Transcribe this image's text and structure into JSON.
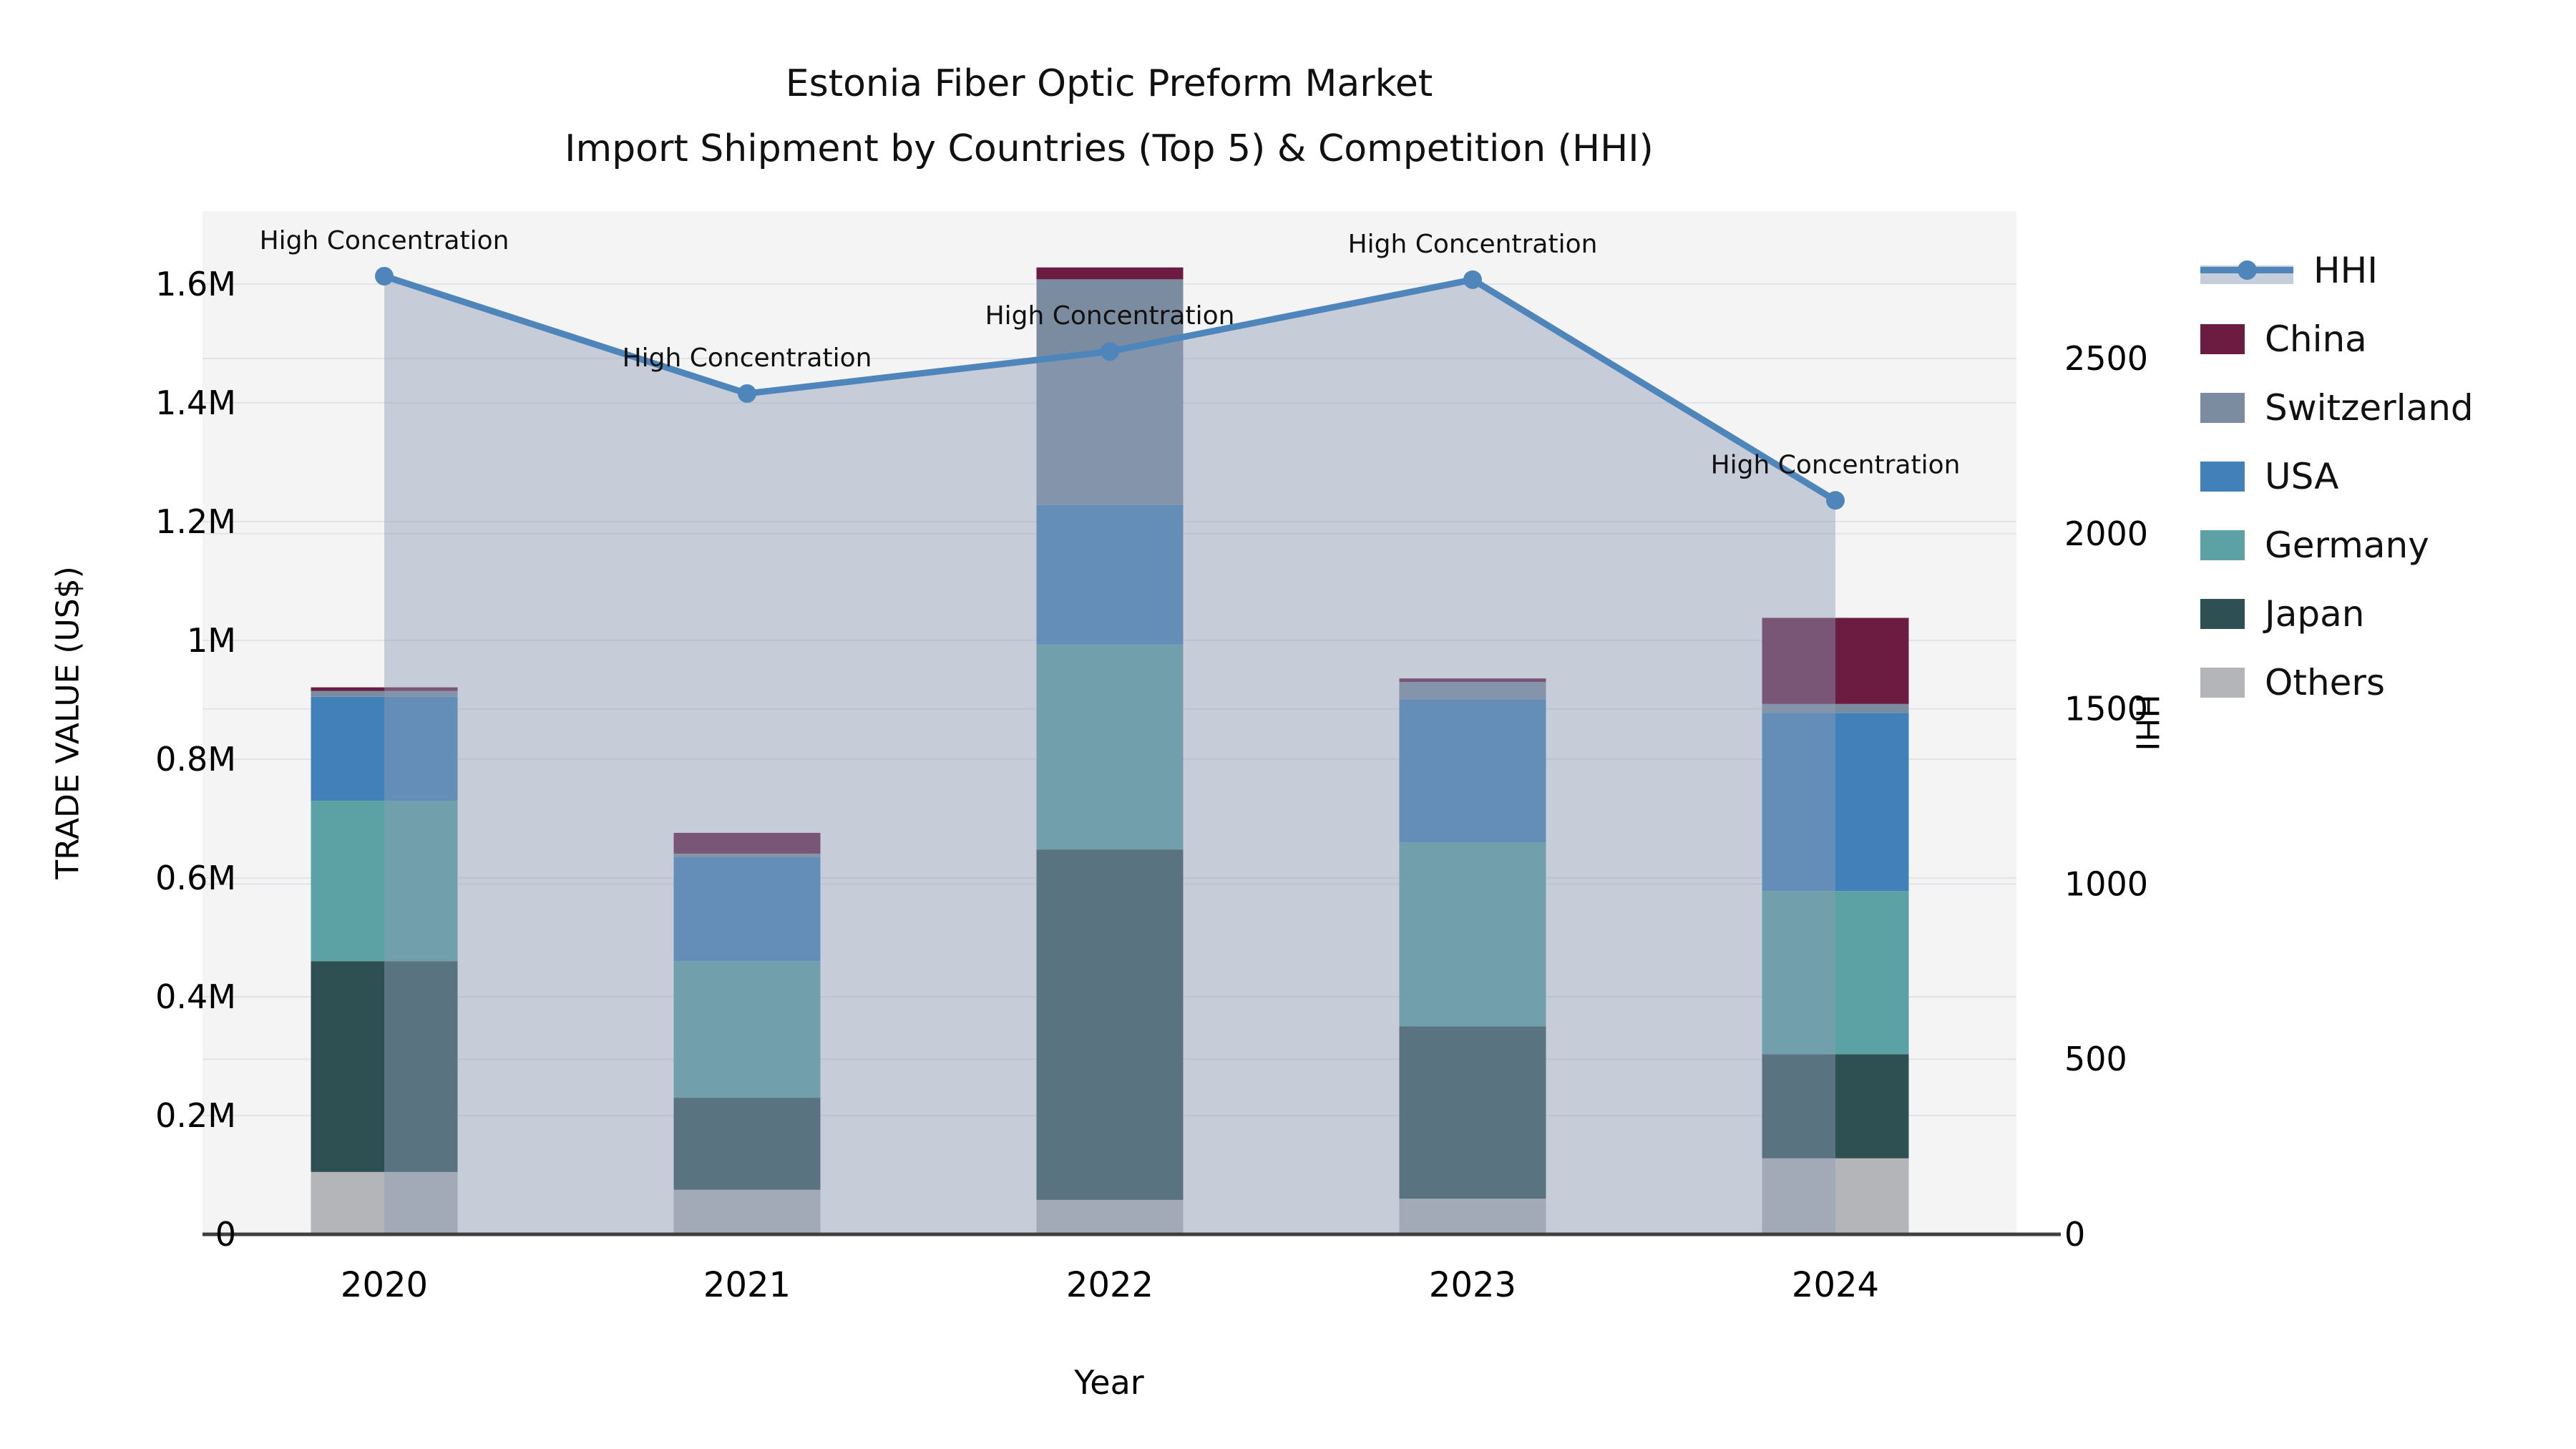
{
  "title": {
    "line1": "Estonia Fiber Optic Preform Market",
    "line2": "Import Shipment by Countries (Top 5) & Competition (HHI)"
  },
  "axes": {
    "x": {
      "label": "Year"
    },
    "y_left": {
      "label": "TRADE VALUE (US$)"
    },
    "y_right": {
      "label": "HHI"
    }
  },
  "legend": {
    "items": [
      {
        "label": "HHI",
        "type": "line",
        "color": "#4E86BB"
      },
      {
        "label": "China",
        "type": "patch",
        "color": "#6B1C40"
      },
      {
        "label": "Switzerland",
        "type": "patch",
        "color": "#7B8CA0"
      },
      {
        "label": "USA",
        "type": "patch",
        "color": "#4280B9"
      },
      {
        "label": "Germany",
        "type": "patch",
        "color": "#5CA1A3"
      },
      {
        "label": "Japan",
        "type": "patch",
        "color": "#2E5052"
      },
      {
        "label": "Others",
        "type": "patch",
        "color": "#B3B5B8"
      }
    ]
  },
  "annotation_text": "High Concentration",
  "chart_data": {
    "type": "bar",
    "subtype": "stacked-bars-with-line-overlay",
    "title": "Estonia Fiber Optic Preform Market — Import Shipment by Countries (Top 5) & Competition (HHI)",
    "categories": [
      "2020",
      "2021",
      "2022",
      "2023",
      "2024"
    ],
    "series": [
      {
        "name": "Others",
        "color": "#B3B5B8",
        "values": [
          105000,
          75000,
          58000,
          60000,
          128000
        ]
      },
      {
        "name": "Japan",
        "color": "#2E5052",
        "values": [
          355000,
          155000,
          590000,
          290000,
          175000
        ]
      },
      {
        "name": "Germany",
        "color": "#5CA1A3",
        "values": [
          270000,
          230000,
          345000,
          310000,
          275000
        ]
      },
      {
        "name": "USA",
        "color": "#4280B9",
        "values": [
          175000,
          175000,
          235000,
          240000,
          300000
        ]
      },
      {
        "name": "Switzerland",
        "color": "#7B8CA0",
        "values": [
          10000,
          6000,
          380000,
          30000,
          15000
        ]
      },
      {
        "name": "China",
        "color": "#6B1C40",
        "values": [
          6000,
          35000,
          20000,
          6000,
          145000
        ]
      }
    ],
    "bar_totals": [
      921000,
      676000,
      1628000,
      936000,
      1038000
    ],
    "line_series": {
      "name": "HHI",
      "values": [
        2735,
        2400,
        2520,
        2725,
        2095
      ],
      "color": "#4E86BB",
      "fill_color": "#8F9DB7",
      "fill_opacity": 0.45,
      "point_annotations": [
        "High Concentration",
        "High Concentration",
        "High Concentration",
        "High Concentration",
        "High Concentration"
      ]
    },
    "xlabel": "Year",
    "ylabel_left": "TRADE VALUE (US$)",
    "ylabel_right": "HHI",
    "y_left_ticks": [
      "0",
      "0.2M",
      "0.4M",
      "0.6M",
      "0.8M",
      "1M",
      "1.2M",
      "1.4M",
      "1.6M"
    ],
    "y_left_tick_values": [
      0,
      200000,
      400000,
      600000,
      800000,
      1000000,
      1200000,
      1400000,
      1600000
    ],
    "y_left_lim": [
      0,
      1720000
    ],
    "y_right_ticks": [
      "0",
      "500",
      "1000",
      "1500",
      "2000",
      "2500"
    ],
    "y_right_tick_values": [
      0,
      500,
      1000,
      1500,
      2000,
      2500
    ],
    "y_right_lim": [
      0,
      2970
    ],
    "grid": true,
    "legend_position": "right",
    "colors": {
      "plot_bg": "#F4F4F5",
      "grid_line": "#E2E3E6",
      "axis_spine": "#3F3F3F",
      "text": "#000000"
    }
  }
}
